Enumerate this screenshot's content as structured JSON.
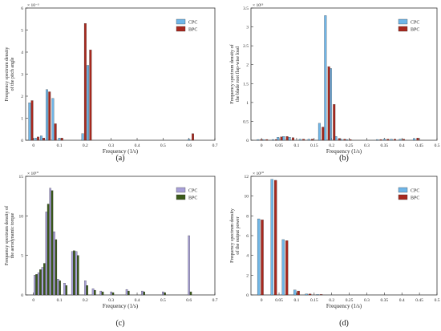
{
  "colors": {
    "cpc": "#6fb6e8",
    "bpc": "#a8281e",
    "cpc_c": "#a8a0d8",
    "bpc_c": "#3b5a1a"
  },
  "chart_data": [
    {
      "type": "bar",
      "panel_label": "(a)",
      "xlabel": "Frequency (1/s)",
      "ylabel_lines": [
        "Frequency spectrum density",
        "of the pitch angle"
      ],
      "exponent": "× 10⁻³",
      "xlim": [
        -0.03,
        0.7
      ],
      "ylim": [
        0,
        6
      ],
      "xticks": [
        0,
        0.1,
        0.2,
        0.3,
        0.4,
        0.5,
        0.6,
        0.7
      ],
      "xtick_labels": [
        "0",
        "0.1",
        "0.2",
        "0.3",
        "0.4",
        "0.5",
        "0.6",
        "0.7"
      ],
      "yticks": [
        0,
        1,
        2,
        3,
        4,
        5,
        6
      ],
      "bar_width": 0.008,
      "legend": {
        "position": "top-right",
        "entries": [
          "CPC",
          "BPC"
        ]
      },
      "series": [
        {
          "name": "CPC",
          "color_key": "cpc",
          "x": [
            -0.015,
            0.008,
            0.03,
            0.052,
            0.075,
            0.1,
            0.19,
            0.21,
            0.6
          ],
          "values": [
            1.7,
            0.1,
            0.2,
            2.3,
            1.9,
            0.1,
            0.3,
            3.4,
            0.05
          ]
        },
        {
          "name": "BPC",
          "color_key": "bpc",
          "x": [
            -0.005,
            0.018,
            0.04,
            0.062,
            0.085,
            0.11,
            0.2,
            0.22,
            0.615
          ],
          "values": [
            1.8,
            0.15,
            0.1,
            2.2,
            0.75,
            0.1,
            5.3,
            4.1,
            0.3
          ]
        }
      ]
    },
    {
      "type": "bar",
      "panel_label": "(b)",
      "xlabel": "Frequency (1/s)",
      "ylabel_lines": [
        "Frequency spectrum density of",
        "the blade root flap-wise load"
      ],
      "exponent": "× 10¹³",
      "xlim": [
        -0.03,
        0.5
      ],
      "ylim": [
        0,
        3.5
      ],
      "xticks": [
        0,
        0.05,
        0.1,
        0.15,
        0.2,
        0.25,
        0.3,
        0.35,
        0.4,
        0.45,
        0.5
      ],
      "xtick_labels": [
        "0",
        "0.05",
        "0.1",
        "0.15",
        "0.2",
        "0.25",
        "0.3",
        "0.35",
        "0.4",
        "0.45",
        "0.5"
      ],
      "yticks": [
        0,
        0.5,
        1,
        1.5,
        2,
        2.5,
        3,
        3.5
      ],
      "bar_width": 0.006,
      "legend": {
        "position": "top-right",
        "entries": [
          "CPC",
          "BPC"
        ]
      },
      "series": [
        {
          "name": "CPC",
          "color_key": "cpc",
          "x": [
            -0.01,
            0.005,
            0.033,
            0.047,
            0.063,
            0.08,
            0.11,
            0.135,
            0.165,
            0.182,
            0.197,
            0.212,
            0.227,
            0.243,
            0.33,
            0.35,
            0.37,
            0.395,
            0.435
          ],
          "values": [
            0.02,
            0.02,
            0.02,
            0.08,
            0.1,
            0.08,
            0.03,
            0.03,
            0.45,
            3.3,
            1.9,
            0.1,
            0.03,
            0.02,
            0.02,
            0.03,
            0.03,
            0.03,
            0.05
          ]
        },
        {
          "name": "BPC",
          "color_key": "bpc",
          "x": [
            0.0,
            0.015,
            0.042,
            0.057,
            0.073,
            0.09,
            0.12,
            0.145,
            0.175,
            0.192,
            0.207,
            0.222,
            0.237,
            0.253,
            0.34,
            0.36,
            0.38,
            0.405,
            0.445
          ],
          "values": [
            0.02,
            0.02,
            0.02,
            0.09,
            0.1,
            0.07,
            0.03,
            0.03,
            0.35,
            1.95,
            0.95,
            0.05,
            0.03,
            0.02,
            0.02,
            0.03,
            0.03,
            0.03,
            0.06
          ]
        }
      ]
    },
    {
      "type": "bar",
      "panel_label": "(c)",
      "xlabel": "Frequency (1/s)",
      "ylabel_lines": [
        "Frequency spectrum density of",
        "the aerodynamic torque"
      ],
      "exponent": "× 10¹⁰",
      "xlim": [
        -0.03,
        0.7
      ],
      "ylim": [
        0,
        15
      ],
      "xticks": [
        0,
        0.1,
        0.2,
        0.3,
        0.4,
        0.5,
        0.6,
        0.7
      ],
      "xtick_labels": [
        "0",
        "0.1",
        "0.2",
        "0.3",
        "0.4",
        "0.5",
        "0.6",
        "0.7"
      ],
      "yticks": [
        0,
        5,
        10,
        15
      ],
      "bar_width": 0.007,
      "legend": {
        "position": "top-right",
        "entries": [
          "CPC",
          "BPC"
        ]
      },
      "series": [
        {
          "name": "CPC",
          "color_key": "cpc_c",
          "x": [
            0.005,
            0.02,
            0.035,
            0.05,
            0.065,
            0.08,
            0.095,
            0.12,
            0.15,
            0.165,
            0.2,
            0.23,
            0.26,
            0.3,
            0.36,
            0.42,
            0.5,
            0.6
          ],
          "values": [
            2.5,
            2.8,
            3.5,
            10.5,
            13.5,
            8.0,
            2.0,
            1.5,
            5.5,
            5.5,
            1.8,
            0.8,
            0.5,
            0.4,
            0.7,
            0.5,
            0.4,
            7.5
          ]
        },
        {
          "name": "BPC",
          "color_key": "bpc_c",
          "x": [
            0.012,
            0.027,
            0.042,
            0.057,
            0.072,
            0.087,
            0.102,
            0.127,
            0.157,
            0.172,
            0.207,
            0.237,
            0.267,
            0.307,
            0.367,
            0.427,
            0.507,
            0.607
          ],
          "values": [
            2.6,
            3.2,
            4.0,
            11.5,
            13.2,
            7.0,
            1.8,
            1.2,
            5.6,
            5.0,
            1.2,
            0.6,
            0.4,
            0.3,
            0.5,
            0.4,
            0.3,
            0.4
          ]
        }
      ]
    },
    {
      "type": "bar",
      "panel_label": "(d)",
      "xlabel": "Frequency (1/s)",
      "ylabel_lines": [
        "Frequency spectrum density",
        "of the output power"
      ],
      "exponent": "× 10¹⁰",
      "xlim": [
        -0.03,
        0.5
      ],
      "ylim": [
        0,
        12
      ],
      "xticks": [
        0,
        0.05,
        0.1,
        0.15,
        0.2,
        0.25,
        0.3,
        0.35,
        0.4,
        0.45,
        0.5
      ],
      "xtick_labels": [
        "0",
        "0.05",
        "0.1",
        "0.15",
        "0.2",
        "0.25",
        "0.3",
        "0.35",
        "0.4",
        "0.45",
        "0.5"
      ],
      "yticks": [
        0,
        2,
        4,
        6,
        8,
        10,
        12
      ],
      "bar_width": 0.007,
      "legend": {
        "position": "top-right",
        "entries": [
          "CPC",
          "BPC"
        ]
      },
      "series": [
        {
          "name": "CPC",
          "color_key": "cpc",
          "x": [
            -0.008,
            0.03,
            0.062,
            0.095,
            0.128,
            0.16
          ],
          "values": [
            7.7,
            11.7,
            5.6,
            0.5,
            0.1,
            0.05
          ]
        },
        {
          "name": "BPC",
          "color_key": "bpc",
          "x": [
            0.002,
            0.04,
            0.072,
            0.105,
            0.138,
            0.17
          ],
          "values": [
            7.6,
            11.6,
            5.5,
            0.4,
            0.1,
            0.05
          ]
        }
      ]
    }
  ]
}
